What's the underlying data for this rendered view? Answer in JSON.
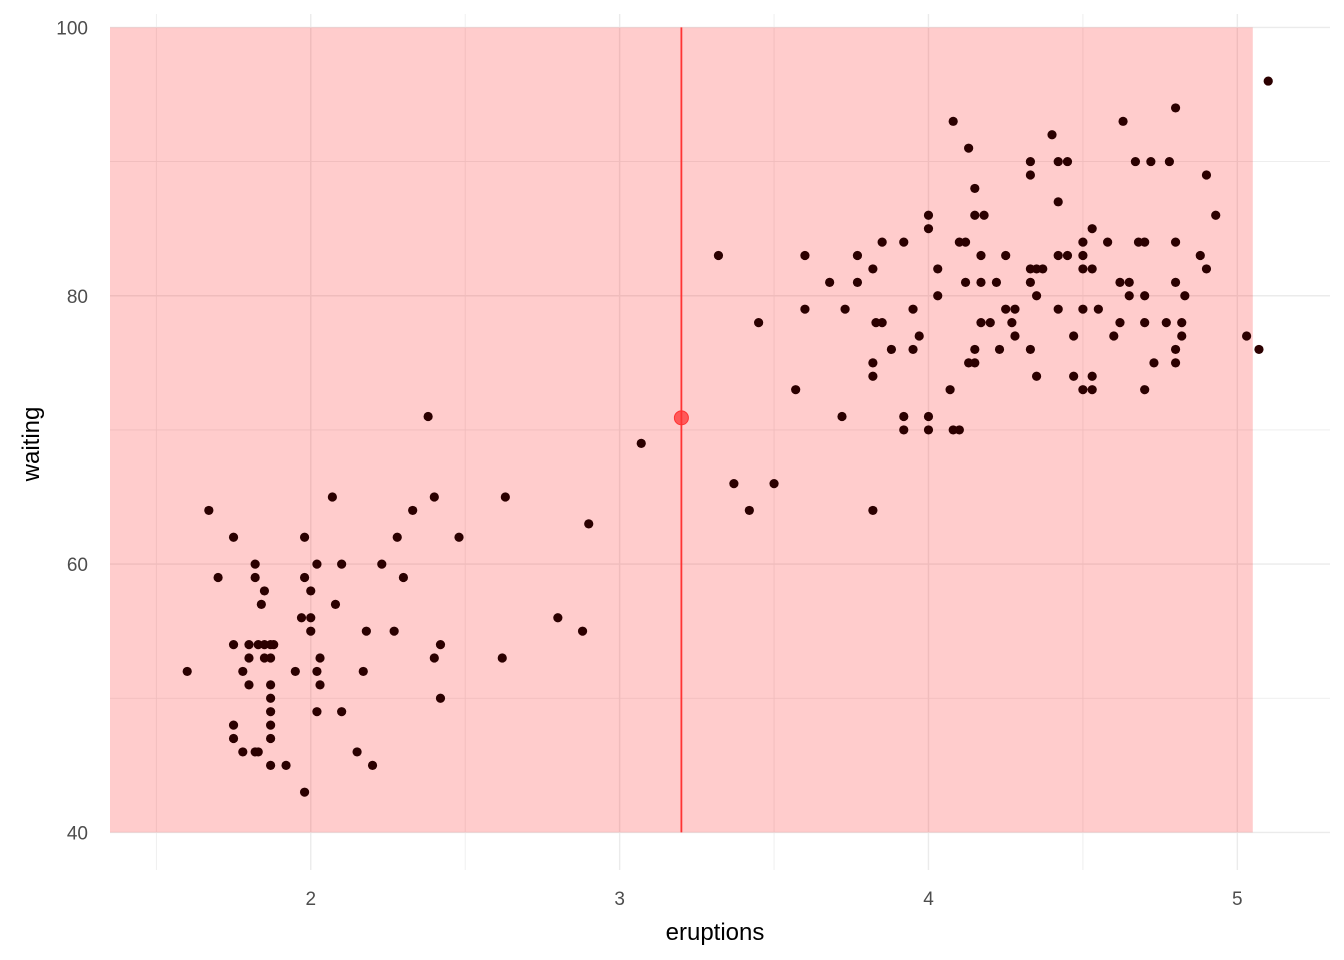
{
  "chart_data": {
    "type": "scatter",
    "xlabel": "eruptions",
    "ylabel": "waiting",
    "xlim": [
      1.35,
      5.3
    ],
    "ylim": [
      37.2,
      101.0
    ],
    "x_ticks": [
      2,
      3,
      4,
      5
    ],
    "y_ticks": [
      40,
      60,
      80,
      100
    ],
    "grid": true,
    "colors": {
      "points": "#2b0000",
      "highlight_region": "#ff0000",
      "highlight_line": "#ff3333",
      "highlight_point": "#ff3333",
      "grid": "#ebebeb"
    },
    "highlight_region": {
      "x": [
        1.35,
        5.05
      ],
      "y": [
        40,
        100
      ]
    },
    "highlight_vline": 3.2,
    "highlight_point": {
      "x": 3.2,
      "y": 70.9
    },
    "points": [
      [
        1.6,
        52
      ],
      [
        1.67,
        64
      ],
      [
        1.7,
        59
      ],
      [
        1.75,
        62
      ],
      [
        1.75,
        54
      ],
      [
        1.75,
        48
      ],
      [
        1.75,
        47
      ],
      [
        1.78,
        52
      ],
      [
        1.78,
        46
      ],
      [
        1.8,
        54
      ],
      [
        1.8,
        53
      ],
      [
        1.8,
        51
      ],
      [
        1.82,
        60
      ],
      [
        1.82,
        59
      ],
      [
        1.82,
        46
      ],
      [
        1.83,
        54
      ],
      [
        1.83,
        46
      ],
      [
        1.84,
        57
      ],
      [
        1.85,
        54
      ],
      [
        1.85,
        58
      ],
      [
        1.85,
        53
      ],
      [
        1.87,
        54
      ],
      [
        1.87,
        53
      ],
      [
        1.87,
        51
      ],
      [
        1.87,
        50
      ],
      [
        1.87,
        49
      ],
      [
        1.87,
        48
      ],
      [
        1.87,
        47
      ],
      [
        1.87,
        45
      ],
      [
        1.88,
        54
      ],
      [
        1.92,
        45
      ],
      [
        1.95,
        52
      ],
      [
        1.97,
        56
      ],
      [
        1.98,
        62
      ],
      [
        1.98,
        59
      ],
      [
        1.98,
        43
      ],
      [
        2.0,
        56
      ],
      [
        2.0,
        58
      ],
      [
        2.0,
        55
      ],
      [
        2.02,
        60
      ],
      [
        2.02,
        52
      ],
      [
        2.02,
        49
      ],
      [
        2.03,
        53
      ],
      [
        2.03,
        51
      ],
      [
        2.07,
        65
      ],
      [
        2.08,
        57
      ],
      [
        2.1,
        60
      ],
      [
        2.1,
        49
      ],
      [
        2.15,
        46
      ],
      [
        2.17,
        52
      ],
      [
        2.18,
        55
      ],
      [
        2.2,
        45
      ],
      [
        2.23,
        60
      ],
      [
        2.27,
        55
      ],
      [
        2.28,
        62
      ],
      [
        2.3,
        59
      ],
      [
        2.33,
        64
      ],
      [
        2.38,
        71
      ],
      [
        2.4,
        65
      ],
      [
        2.4,
        53
      ],
      [
        2.42,
        54
      ],
      [
        2.42,
        50
      ],
      [
        2.48,
        62
      ],
      [
        2.62,
        53
      ],
      [
        2.63,
        65
      ],
      [
        2.8,
        56
      ],
      [
        2.88,
        55
      ],
      [
        2.9,
        63
      ],
      [
        3.07,
        69
      ],
      [
        3.32,
        83
      ],
      [
        3.37,
        66
      ],
      [
        3.42,
        64
      ],
      [
        3.45,
        78
      ],
      [
        3.5,
        66
      ],
      [
        3.57,
        73
      ],
      [
        3.6,
        83
      ],
      [
        3.6,
        79
      ],
      [
        3.68,
        81
      ],
      [
        3.72,
        71
      ],
      [
        3.73,
        79
      ],
      [
        3.77,
        83
      ],
      [
        3.77,
        81
      ],
      [
        3.82,
        82
      ],
      [
        3.82,
        75
      ],
      [
        3.82,
        74
      ],
      [
        3.82,
        64
      ],
      [
        3.83,
        78
      ],
      [
        3.85,
        84
      ],
      [
        3.85,
        78
      ],
      [
        3.88,
        76
      ],
      [
        3.92,
        84
      ],
      [
        3.92,
        71
      ],
      [
        3.92,
        70
      ],
      [
        3.95,
        79
      ],
      [
        3.95,
        76
      ],
      [
        3.97,
        77
      ],
      [
        4.0,
        86
      ],
      [
        4.0,
        85
      ],
      [
        4.0,
        71
      ],
      [
        4.0,
        70
      ],
      [
        4.03,
        82
      ],
      [
        4.03,
        80
      ],
      [
        4.07,
        73
      ],
      [
        4.08,
        93
      ],
      [
        4.08,
        70
      ],
      [
        4.1,
        84
      ],
      [
        4.1,
        70
      ],
      [
        4.12,
        84
      ],
      [
        4.12,
        81
      ],
      [
        4.13,
        91
      ],
      [
        4.13,
        75
      ],
      [
        4.15,
        88
      ],
      [
        4.15,
        86
      ],
      [
        4.15,
        76
      ],
      [
        4.15,
        75
      ],
      [
        4.17,
        83
      ],
      [
        4.17,
        81
      ],
      [
        4.17,
        78
      ],
      [
        4.18,
        86
      ],
      [
        4.2,
        78
      ],
      [
        4.22,
        81
      ],
      [
        4.23,
        76
      ],
      [
        4.25,
        83
      ],
      [
        4.25,
        79
      ],
      [
        4.27,
        78
      ],
      [
        4.28,
        77
      ],
      [
        4.28,
        79
      ],
      [
        4.33,
        90
      ],
      [
        4.33,
        89
      ],
      [
        4.33,
        82
      ],
      [
        4.33,
        81
      ],
      [
        4.33,
        76
      ],
      [
        4.35,
        82
      ],
      [
        4.35,
        80
      ],
      [
        4.35,
        74
      ],
      [
        4.37,
        82
      ],
      [
        4.4,
        92
      ],
      [
        4.42,
        90
      ],
      [
        4.42,
        87
      ],
      [
        4.42,
        83
      ],
      [
        4.42,
        79
      ],
      [
        4.45,
        90
      ],
      [
        4.45,
        83
      ],
      [
        4.47,
        77
      ],
      [
        4.47,
        74
      ],
      [
        4.5,
        84
      ],
      [
        4.5,
        83
      ],
      [
        4.5,
        82
      ],
      [
        4.5,
        79
      ],
      [
        4.5,
        73
      ],
      [
        4.53,
        85
      ],
      [
        4.53,
        82
      ],
      [
        4.53,
        74
      ],
      [
        4.53,
        73
      ],
      [
        4.55,
        79
      ],
      [
        4.58,
        84
      ],
      [
        4.6,
        77
      ],
      [
        4.62,
        81
      ],
      [
        4.62,
        78
      ],
      [
        4.63,
        93
      ],
      [
        4.65,
        81
      ],
      [
        4.65,
        80
      ],
      [
        4.67,
        90
      ],
      [
        4.68,
        84
      ],
      [
        4.7,
        84
      ],
      [
        4.7,
        80
      ],
      [
        4.7,
        78
      ],
      [
        4.7,
        73
      ],
      [
        4.72,
        90
      ],
      [
        4.73,
        75
      ],
      [
        4.77,
        78
      ],
      [
        4.78,
        90
      ],
      [
        4.8,
        94
      ],
      [
        4.8,
        84
      ],
      [
        4.8,
        81
      ],
      [
        4.8,
        76
      ],
      [
        4.8,
        75
      ],
      [
        4.82,
        78
      ],
      [
        4.82,
        77
      ],
      [
        4.83,
        80
      ],
      [
        4.88,
        83
      ],
      [
        4.9,
        89
      ],
      [
        4.9,
        82
      ],
      [
        4.93,
        86
      ],
      [
        5.03,
        77
      ],
      [
        5.07,
        76
      ],
      [
        5.1,
        96
      ]
    ]
  }
}
